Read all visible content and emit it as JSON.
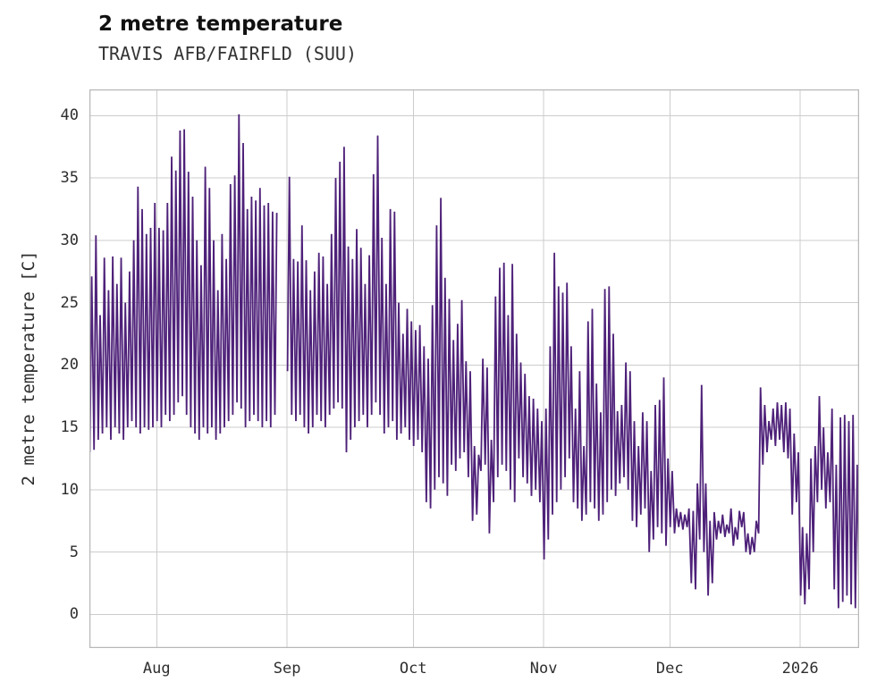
{
  "title": "2 metre temperature",
  "subtitle": "TRAVIS AFB/FAIRFLD (SUU)",
  "chart_data": {
    "type": "line",
    "title": "2 metre temperature",
    "subtitle": "TRAVIS AFB/FAIRFLD (SUU)",
    "xlabel": "",
    "ylabel": "2 metre temperature [C]",
    "ylim": [
      -2.7,
      42.1
    ],
    "y_ticks": [
      0,
      5,
      10,
      15,
      20,
      25,
      30,
      35,
      40
    ],
    "x_ticks": [
      {
        "label": "Aug",
        "day": 16
      },
      {
        "label": "Sep",
        "day": 47
      },
      {
        "label": "Oct",
        "day": 77
      },
      {
        "label": "Nov",
        "day": 108
      },
      {
        "label": "Dec",
        "day": 138
      },
      {
        "label": "2026",
        "day": 169
      }
    ],
    "x_domain_days": [
      0,
      183
    ],
    "grid": true,
    "legend": "none",
    "line_color": "#4e2179",
    "series_name": "2 metre temperature",
    "daily_min_max": [
      [
        13.0,
        27.1
      ],
      [
        13.2,
        30.4
      ],
      [
        14.0,
        24.0
      ],
      [
        14.5,
        28.6
      ],
      [
        15.0,
        26.0
      ],
      [
        14.0,
        28.7
      ],
      [
        15.0,
        26.5
      ],
      [
        14.5,
        28.6
      ],
      [
        14.0,
        25.0
      ],
      [
        15.0,
        27.5
      ],
      [
        15.5,
        30.0
      ],
      [
        15.0,
        34.3
      ],
      [
        14.5,
        32.5
      ],
      [
        15.0,
        30.5
      ],
      [
        14.8,
        31.0
      ],
      [
        15.0,
        33.0
      ],
      [
        15.5,
        31.0
      ],
      [
        15.0,
        30.8
      ],
      [
        16.0,
        33.0
      ],
      [
        15.5,
        36.7
      ],
      [
        16.0,
        35.6
      ],
      [
        17.0,
        38.8
      ],
      [
        17.5,
        38.9
      ],
      [
        16.0,
        35.5
      ],
      [
        15.0,
        33.5
      ],
      [
        14.5,
        30.0
      ],
      [
        14.0,
        28.0
      ],
      [
        15.0,
        35.9
      ],
      [
        14.5,
        34.2
      ],
      [
        15.0,
        30.0
      ],
      [
        14.0,
        26.0
      ],
      [
        14.5,
        30.5
      ],
      [
        15.0,
        28.5
      ],
      [
        15.5,
        34.5
      ],
      [
        16.0,
        35.2
      ],
      [
        17.0,
        40.1
      ],
      [
        16.5,
        37.8
      ],
      [
        15.0,
        32.5
      ],
      [
        15.5,
        33.5
      ],
      [
        16.0,
        33.2
      ],
      [
        15.5,
        34.2
      ],
      [
        15.0,
        32.8
      ],
      [
        15.5,
        33.0
      ],
      [
        15.0,
        32.3
      ],
      [
        16.0,
        32.2
      ],
      null,
      null,
      [
        19.5,
        35.1
      ],
      [
        16.0,
        28.5
      ],
      [
        15.5,
        28.3
      ],
      [
        16.0,
        31.2
      ],
      [
        15.0,
        28.4
      ],
      [
        14.5,
        26.0
      ],
      [
        15.0,
        27.5
      ],
      [
        16.0,
        29.0
      ],
      [
        15.5,
        28.7
      ],
      [
        15.0,
        26.5
      ],
      [
        16.0,
        30.5
      ],
      [
        16.5,
        35.0
      ],
      [
        17.0,
        36.3
      ],
      [
        16.5,
        37.5
      ],
      [
        13.0,
        29.5
      ],
      [
        14.0,
        28.5
      ],
      [
        15.0,
        30.9
      ],
      [
        15.5,
        29.4
      ],
      [
        16.0,
        26.5
      ],
      [
        15.0,
        28.8
      ],
      [
        16.0,
        35.3
      ],
      [
        17.0,
        38.4
      ],
      [
        16.0,
        30.2
      ],
      [
        14.5,
        26.5
      ],
      [
        15.0,
        32.5
      ],
      [
        15.5,
        32.3
      ],
      [
        14.0,
        25.0
      ],
      [
        14.5,
        22.5
      ],
      [
        15.0,
        24.5
      ],
      [
        14.0,
        23.5
      ],
      [
        13.5,
        22.8
      ],
      [
        14.0,
        23.2
      ],
      [
        13.0,
        21.5
      ],
      [
        9.0,
        20.5
      ],
      [
        8.5,
        24.8
      ],
      [
        10.0,
        31.2
      ],
      [
        11.0,
        33.4
      ],
      [
        10.5,
        27.0
      ],
      [
        9.5,
        25.3
      ],
      [
        12.0,
        22.0
      ],
      [
        11.5,
        23.3
      ],
      [
        12.5,
        25.2
      ],
      [
        13.0,
        20.3
      ],
      [
        11.0,
        19.5
      ],
      [
        7.5,
        13.5
      ],
      [
        8.0,
        12.8
      ],
      [
        11.5,
        20.5
      ],
      [
        12.0,
        19.8
      ],
      [
        6.5,
        14.0
      ],
      [
        9.0,
        25.5
      ],
      [
        11.0,
        27.8
      ],
      [
        12.0,
        28.2
      ],
      [
        11.5,
        24.0
      ],
      [
        10.0,
        28.1
      ],
      [
        9.0,
        22.5
      ],
      [
        12.5,
        20.2
      ],
      [
        11.0,
        19.3
      ],
      [
        10.5,
        17.5
      ],
      [
        9.5,
        17.3
      ],
      [
        10.0,
        16.5
      ],
      [
        9.0,
        15.5
      ],
      [
        4.4,
        16.5
      ],
      [
        6.0,
        21.5
      ],
      [
        8.0,
        29.0
      ],
      [
        9.0,
        26.3
      ],
      [
        10.0,
        25.8
      ],
      [
        11.0,
        26.6
      ],
      [
        12.5,
        21.5
      ],
      [
        9.0,
        16.5
      ],
      [
        8.5,
        19.5
      ],
      [
        7.5,
        13.5
      ],
      [
        8.0,
        23.5
      ],
      [
        9.0,
        24.5
      ],
      [
        8.5,
        18.5
      ],
      [
        7.5,
        16.2
      ],
      [
        8.0,
        26.1
      ],
      [
        9.0,
        26.3
      ],
      [
        10.0,
        22.5
      ],
      [
        9.5,
        16.3
      ],
      [
        10.5,
        16.8
      ],
      [
        11.0,
        20.2
      ],
      [
        10.0,
        19.5
      ],
      [
        7.5,
        15.5
      ],
      [
        7.0,
        13.5
      ],
      [
        8.0,
        16.2
      ],
      [
        8.5,
        15.5
      ],
      [
        5.0,
        11.5
      ],
      [
        6.0,
        16.8
      ],
      [
        7.0,
        17.2
      ],
      [
        6.5,
        19.0
      ],
      [
        5.5,
        12.5
      ],
      [
        7.0,
        11.5
      ],
      [
        6.5,
        8.5
      ],
      [
        7.0,
        8.2
      ],
      [
        6.8,
        8.0
      ],
      [
        7.0,
        8.5
      ],
      [
        2.5,
        8.3
      ],
      [
        2.0,
        10.5
      ],
      [
        6.0,
        18.4
      ],
      [
        5.0,
        10.5
      ],
      [
        1.5,
        7.5
      ],
      [
        2.5,
        8.2
      ],
      [
        6.0,
        7.5
      ],
      [
        6.5,
        8.0
      ],
      [
        6.2,
        7.2
      ],
      [
        6.5,
        8.5
      ],
      [
        5.5,
        7.0
      ],
      [
        6.0,
        8.3
      ],
      [
        7.0,
        8.2
      ],
      [
        5.0,
        6.5
      ],
      [
        4.8,
        6.2
      ],
      [
        5.0,
        7.5
      ],
      [
        6.5,
        18.2
      ],
      [
        12.0,
        16.8
      ],
      [
        13.0,
        15.5
      ],
      [
        14.0,
        16.5
      ],
      [
        13.5,
        17.0
      ],
      [
        14.0,
        16.8
      ],
      [
        13.0,
        17.0
      ],
      [
        12.5,
        16.5
      ],
      [
        8.0,
        14.5
      ],
      [
        9.0,
        13.0
      ],
      [
        1.5,
        7.0
      ],
      [
        0.8,
        6.5
      ],
      [
        2.0,
        12.5
      ],
      [
        5.0,
        13.5
      ],
      [
        9.0,
        17.5
      ],
      [
        10.0,
        15.0
      ],
      [
        8.5,
        13.0
      ],
      [
        9.0,
        16.5
      ],
      [
        2.0,
        12.0
      ],
      [
        0.5,
        15.8
      ],
      [
        1.0,
        16.0
      ],
      [
        1.5,
        15.5
      ],
      [
        0.8,
        16.0
      ],
      [
        0.5,
        12.0
      ],
      [
        0.0,
        8.0
      ]
    ]
  },
  "colors": {
    "line": "#4e2179",
    "grid": "#cccccc",
    "plot_border": "#b8b8b8",
    "text": "#2e2e2e",
    "title_text": "#111111"
  }
}
